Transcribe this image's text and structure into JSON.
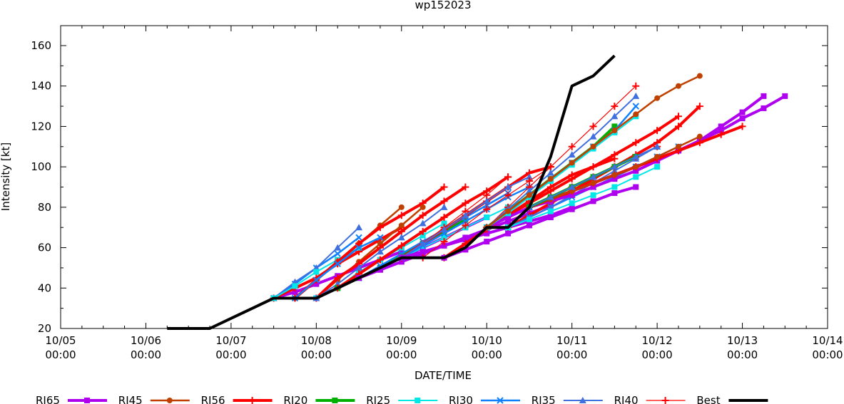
{
  "chart_data": {
    "type": "line",
    "title": "wp152023",
    "xlabel": "DATE/TIME",
    "ylabel": "Intensity [kt]",
    "x_units": "hours since 10/05 00:00",
    "xlim": [
      0,
      216
    ],
    "ylim": [
      20,
      170
    ],
    "x_ticks": [
      {
        "hour": 0,
        "date": "10/05",
        "time": "00:00"
      },
      {
        "hour": 24,
        "date": "10/06",
        "time": "00:00"
      },
      {
        "hour": 48,
        "date": "10/07",
        "time": "00:00"
      },
      {
        "hour": 72,
        "date": "10/08",
        "time": "00:00"
      },
      {
        "hour": 96,
        "date": "10/09",
        "time": "00:00"
      },
      {
        "hour": 120,
        "date": "10/10",
        "time": "00:00"
      },
      {
        "hour": 144,
        "date": "10/11",
        "time": "00:00"
      },
      {
        "hour": 168,
        "date": "10/12",
        "time": "00:00"
      },
      {
        "hour": 192,
        "date": "10/13",
        "time": "00:00"
      },
      {
        "hour": 216,
        "date": "10/14",
        "time": "00:00"
      }
    ],
    "y_ticks": [
      "20",
      "40",
      "60",
      "80",
      "100",
      "120",
      "140",
      "160"
    ],
    "legend_position": "bottom",
    "legend": [
      {
        "name": "RI65",
        "color": "#b000f0",
        "marker": "square",
        "width": 4
      },
      {
        "name": "RI45",
        "color": "#c04000",
        "marker": "circle",
        "width": 2.5
      },
      {
        "name": "RI56",
        "color": "#ff0000",
        "marker": "plus",
        "width": 4
      },
      {
        "name": "RI20",
        "color": "#00b000",
        "marker": "square",
        "width": 4
      },
      {
        "name": "RI25",
        "color": "#00e8e8",
        "marker": "square",
        "width": 2
      },
      {
        "name": "RI30",
        "color": "#1080ff",
        "marker": "x",
        "width": 2.5
      },
      {
        "name": "RI35",
        "color": "#4070e0",
        "marker": "triangle",
        "width": 2
      },
      {
        "name": "RI40",
        "color": "#ff0000",
        "marker": "plus",
        "width": 1.2
      },
      {
        "name": "Best",
        "color": "#000000",
        "marker": "none",
        "width": 4
      }
    ],
    "best_track": {
      "start_hour": 30,
      "step_hours": 6,
      "values": [
        20,
        20,
        20,
        25,
        30,
        35,
        35,
        35,
        40,
        45,
        50,
        55,
        55,
        55,
        60,
        70,
        70,
        80,
        105,
        140,
        145,
        155
      ]
    },
    "forecasts": [
      {
        "model": "RI65",
        "start_hour": 60,
        "values": [
          35,
          38,
          42,
          46,
          50,
          54,
          58
        ]
      },
      {
        "model": "RI56",
        "start_hour": 60,
        "values": [
          35,
          40,
          45,
          52,
          58,
          64,
          70
        ]
      },
      {
        "model": "RI30",
        "start_hour": 60,
        "values": [
          35,
          42,
          50,
          57,
          65
        ]
      },
      {
        "model": "RI35",
        "start_hour": 60,
        "values": [
          35,
          43,
          50,
          60,
          70
        ]
      },
      {
        "model": "RI25",
        "start_hour": 60,
        "values": [
          35,
          41,
          48,
          54,
          60
        ]
      },
      {
        "model": "RI45",
        "start_hour": 66,
        "values": [
          35,
          44,
          53,
          62,
          71,
          80
        ]
      },
      {
        "model": "RI56",
        "start_hour": 66,
        "values": [
          35,
          44,
          53,
          62,
          70,
          76,
          82,
          90
        ]
      },
      {
        "model": "RI30",
        "start_hour": 66,
        "values": [
          35,
          44,
          52,
          60,
          65
        ]
      },
      {
        "model": "RI65",
        "start_hour": 72,
        "values": [
          35,
          40,
          45,
          50,
          55,
          60,
          65,
          70,
          75
        ]
      },
      {
        "model": "RI45",
        "start_hour": 72,
        "values": [
          35,
          44,
          53,
          62,
          71,
          80
        ]
      },
      {
        "model": "RI56",
        "start_hour": 72,
        "values": [
          35,
          45,
          52,
          60,
          68,
          76,
          83,
          90
        ]
      },
      {
        "model": "RI25",
        "start_hour": 72,
        "values": [
          35,
          40,
          48,
          54,
          60,
          66,
          72
        ]
      },
      {
        "model": "RI35",
        "start_hour": 72,
        "values": [
          35,
          42,
          50,
          58,
          65,
          72,
          80
        ]
      },
      {
        "model": "RI20",
        "start_hour": 78,
        "values": [
          40,
          45,
          50,
          56,
          62,
          68,
          74
        ]
      },
      {
        "model": "RI56",
        "start_hour": 78,
        "values": [
          40,
          47,
          54,
          61,
          68,
          75,
          82,
          88,
          95
        ]
      },
      {
        "model": "RI30",
        "start_hour": 84,
        "values": [
          45,
          51,
          57,
          63,
          69,
          75,
          81,
          87
        ]
      },
      {
        "model": "RI65",
        "start_hour": 84,
        "values": [
          45,
          49,
          53,
          57,
          61,
          65,
          69,
          73,
          77,
          81
        ]
      },
      {
        "model": "RI40",
        "start_hour": 96,
        "values": [
          55,
          62,
          70,
          78,
          86,
          95
        ]
      },
      {
        "model": "RI56",
        "start_hour": 96,
        "values": [
          55,
          62,
          69,
          76,
          83,
          90,
          97,
          100
        ]
      },
      {
        "model": "RI25",
        "start_hour": 96,
        "values": [
          55,
          60,
          65,
          70,
          75,
          80,
          85
        ]
      },
      {
        "model": "RI30",
        "start_hour": 96,
        "values": [
          55,
          61,
          67,
          73,
          79,
          85,
          90
        ]
      },
      {
        "model": "RI35",
        "start_hour": 96,
        "values": [
          55,
          62,
          69,
          76,
          83,
          90,
          95
        ]
      },
      {
        "model": "RI65",
        "start_hour": 96,
        "values": [
          55,
          58,
          61,
          64,
          67,
          70,
          73,
          76,
          80
        ]
      },
      {
        "model": "RI40",
        "start_hour": 102,
        "values": [
          55,
          63,
          71,
          79,
          86,
          93,
          100
        ]
      },
      {
        "model": "RI56",
        "start_hour": 108,
        "values": [
          55,
          62,
          69,
          76,
          83,
          90,
          96,
          100,
          104
        ]
      },
      {
        "model": "RI65",
        "start_hour": 108,
        "values": [
          55,
          59,
          63,
          67,
          71,
          75,
          79,
          83,
          87,
          90
        ]
      },
      {
        "model": "RI56",
        "start_hour": 120,
        "values": [
          70,
          76,
          82,
          88,
          94,
          100,
          106,
          112,
          118,
          125
        ]
      },
      {
        "model": "RI65",
        "start_hour": 120,
        "values": [
          70,
          75,
          80,
          84,
          88,
          92,
          96,
          100,
          104,
          108,
          113,
          118,
          124,
          129,
          135
        ]
      },
      {
        "model": "RI20",
        "start_hour": 120,
        "values": [
          70,
          78,
          86,
          94,
          102,
          110,
          120
        ]
      },
      {
        "model": "RI40",
        "start_hour": 120,
        "values": [
          70,
          80,
          90,
          100,
          110,
          120,
          130,
          140
        ]
      },
      {
        "model": "RI35",
        "start_hour": 120,
        "values": [
          70,
          79,
          88,
          97,
          106,
          115,
          125,
          135
        ]
      },
      {
        "model": "RI30",
        "start_hour": 120,
        "values": [
          70,
          78,
          86,
          94,
          102,
          110,
          118,
          130
        ]
      },
      {
        "model": "RI25",
        "start_hour": 120,
        "values": [
          70,
          77,
          85,
          93,
          101,
          109,
          117,
          125
        ]
      },
      {
        "model": "RI45",
        "start_hour": 120,
        "values": [
          70,
          78,
          86,
          94,
          102,
          110,
          118,
          126,
          134,
          140,
          145
        ]
      },
      {
        "model": "RI56",
        "start_hour": 126,
        "values": [
          70,
          76,
          82,
          88,
          94,
          100,
          106,
          112,
          120,
          130
        ]
      },
      {
        "model": "RI30",
        "start_hour": 126,
        "values": [
          70,
          75,
          80,
          85,
          90,
          95,
          100,
          105,
          110
        ]
      },
      {
        "model": "RI35",
        "start_hour": 126,
        "values": [
          70,
          75,
          80,
          86,
          92,
          98,
          104,
          110
        ]
      },
      {
        "model": "RI25",
        "start_hour": 126,
        "values": [
          70,
          74,
          78,
          82,
          86,
          90,
          95,
          100
        ]
      },
      {
        "model": "RI65",
        "start_hour": 132,
        "values": [
          80,
          83,
          86,
          90,
          94,
          98,
          103,
          108,
          113,
          120,
          127,
          135
        ]
      },
      {
        "model": "RI56",
        "start_hour": 132,
        "values": [
          80,
          84,
          88,
          92,
          96,
          100,
          104,
          108,
          112,
          116,
          120
        ]
      },
      {
        "model": "RI45",
        "start_hour": 132,
        "values": [
          80,
          84,
          88,
          92,
          96,
          100,
          105,
          110,
          115
        ]
      },
      {
        "model": "RI40",
        "start_hour": 132,
        "values": [
          80,
          85,
          90,
          95,
          100,
          105,
          110
        ]
      },
      {
        "model": "RI20",
        "start_hour": 132,
        "values": [
          80,
          85,
          90,
          95,
          100,
          105
        ]
      },
      {
        "model": "RI35",
        "start_hour": 132,
        "values": [
          80,
          85,
          90,
          95,
          100,
          105,
          110
        ]
      }
    ]
  }
}
